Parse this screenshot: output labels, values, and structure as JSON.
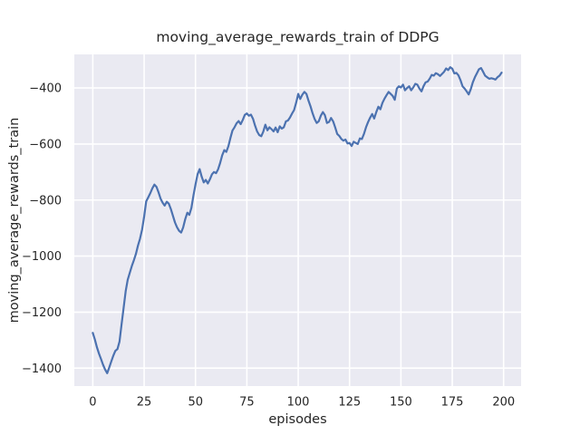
{
  "figure": {
    "background": "#ffffff"
  },
  "chart_data": {
    "type": "line",
    "title": "moving_average_rewards_train of DDPG",
    "xlabel": "episodes",
    "ylabel": "moving_average_rewards_train",
    "grid": true,
    "legend": false,
    "xlim": [
      -9,
      208.5
    ],
    "ylim": [
      -1464,
      -280
    ],
    "x_ticks": [
      0,
      25,
      50,
      75,
      100,
      125,
      150,
      175,
      200
    ],
    "x_tick_labels": [
      "0",
      "25",
      "50",
      "75",
      "100",
      "125",
      "150",
      "175",
      "200"
    ],
    "y_ticks": [
      -400,
      -600,
      -800,
      -1000,
      -1200,
      -1400
    ],
    "y_tick_labels": [
      "−400",
      "−600",
      "−800",
      "−1000",
      "−1200",
      "−1400"
    ],
    "colors": {
      "line": "#4c72b0",
      "plot_bg": "#eaeaf2",
      "grid": "#ffffff",
      "text": "#262626",
      "figure_bg": "#ffffff"
    },
    "series": [
      {
        "name": "moving_average_rewards_train",
        "x_start": 0,
        "x_step": 1,
        "values": [
          -1274,
          -1298,
          -1325,
          -1348,
          -1368,
          -1388,
          -1405,
          -1418,
          -1398,
          -1376,
          -1355,
          -1338,
          -1332,
          -1305,
          -1245,
          -1185,
          -1125,
          -1085,
          -1060,
          -1035,
          -1015,
          -992,
          -962,
          -938,
          -905,
          -858,
          -805,
          -790,
          -775,
          -758,
          -745,
          -753,
          -772,
          -795,
          -810,
          -820,
          -806,
          -813,
          -832,
          -856,
          -880,
          -897,
          -910,
          -916,
          -898,
          -868,
          -845,
          -853,
          -828,
          -783,
          -745,
          -708,
          -690,
          -716,
          -737,
          -728,
          -741,
          -726,
          -708,
          -700,
          -704,
          -690,
          -668,
          -640,
          -622,
          -628,
          -608,
          -578,
          -552,
          -540,
          -526,
          -518,
          -529,
          -514,
          -496,
          -491,
          -499,
          -495,
          -510,
          -535,
          -555,
          -568,
          -572,
          -556,
          -531,
          -551,
          -540,
          -547,
          -555,
          -541,
          -558,
          -537,
          -545,
          -540,
          -519,
          -516,
          -505,
          -491,
          -479,
          -452,
          -421,
          -439,
          -424,
          -414,
          -421,
          -445,
          -466,
          -490,
          -511,
          -525,
          -519,
          -499,
          -486,
          -497,
          -525,
          -521,
          -507,
          -519,
          -541,
          -564,
          -571,
          -582,
          -588,
          -584,
          -598,
          -596,
          -607,
          -592,
          -596,
          -600,
          -580,
          -582,
          -564,
          -540,
          -522,
          -506,
          -493,
          -509,
          -486,
          -467,
          -476,
          -453,
          -438,
          -426,
          -414,
          -421,
          -428,
          -442,
          -402,
          -394,
          -398,
          -388,
          -408,
          -400,
          -394,
          -408,
          -398,
          -385,
          -388,
          -402,
          -412,
          -394,
          -380,
          -377,
          -367,
          -353,
          -356,
          -347,
          -351,
          -357,
          -350,
          -342,
          -330,
          -336,
          -326,
          -331,
          -348,
          -346,
          -355,
          -372,
          -394,
          -402,
          -412,
          -423,
          -404,
          -380,
          -362,
          -347,
          -333,
          -329,
          -342,
          -356,
          -362,
          -367,
          -365,
          -367,
          -370,
          -362,
          -356,
          -345
        ]
      }
    ]
  }
}
